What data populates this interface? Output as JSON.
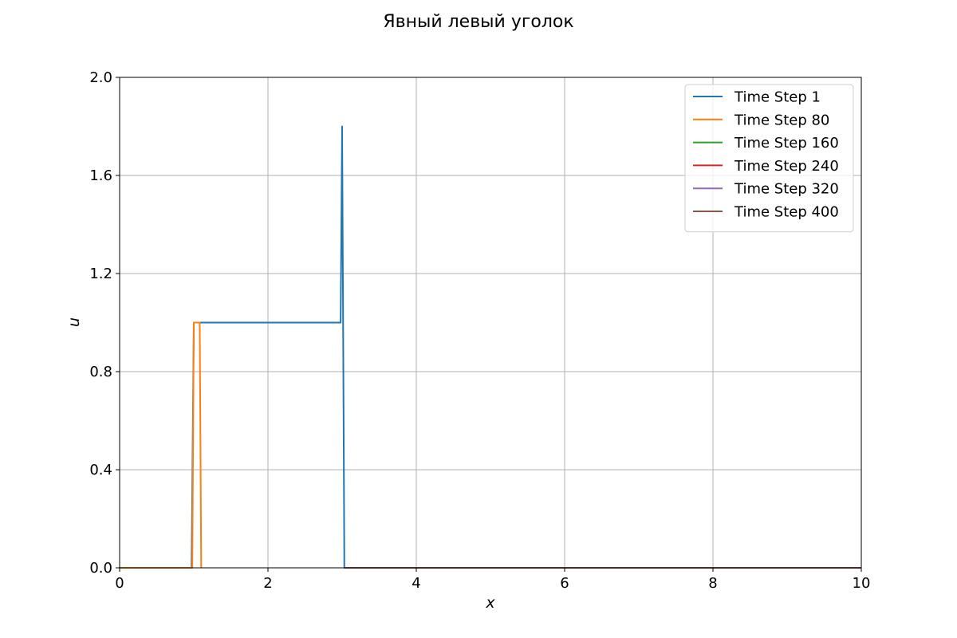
{
  "chart_data": {
    "type": "line",
    "title": "Явный левый уголок",
    "xlabel": "x",
    "ylabel": "u",
    "xlim": [
      0,
      10
    ],
    "ylim": [
      0,
      2.0
    ],
    "xticks": [
      0,
      2,
      4,
      6,
      8,
      10
    ],
    "xtick_labels": [
      "0",
      "2",
      "4",
      "6",
      "8",
      "10"
    ],
    "yticks": [
      0.0,
      0.4,
      0.8,
      1.2,
      1.6,
      2.0
    ],
    "ytick_labels": [
      "0.0",
      "0.4",
      "0.8",
      "1.2",
      "1.6",
      "2.0"
    ],
    "grid": true,
    "legend_position": "upper-right",
    "series": [
      {
        "name": "Time Step 1",
        "color": "#1f77b4",
        "x": [
          0,
          0.97,
          1.0,
          1.08,
          2.98,
          3.0,
          3.03,
          10.0
        ],
        "y": [
          0,
          0,
          1.0,
          1.0,
          1.0,
          1.8,
          0.0,
          0.0
        ]
      },
      {
        "name": "Time Step 80",
        "color": "#ff7f0e",
        "x": [
          0,
          0.98,
          1.0,
          1.06,
          1.08,
          1.1
        ],
        "y": [
          0,
          0,
          1.0,
          1.0,
          1.0,
          0.0
        ]
      },
      {
        "name": "Time Step 160",
        "color": "#2ca02c",
        "x": [],
        "y": []
      },
      {
        "name": "Time Step 240",
        "color": "#d62728",
        "x": [
          3.03,
          10.0
        ],
        "y": [
          0.0,
          0.0
        ]
      },
      {
        "name": "Time Step 320",
        "color": "#9467bd",
        "x": [],
        "y": []
      },
      {
        "name": "Time Step 400",
        "color": "#8c564b",
        "x": [
          3.03,
          10.0
        ],
        "y": [
          0.0,
          0.0
        ]
      }
    ]
  }
}
